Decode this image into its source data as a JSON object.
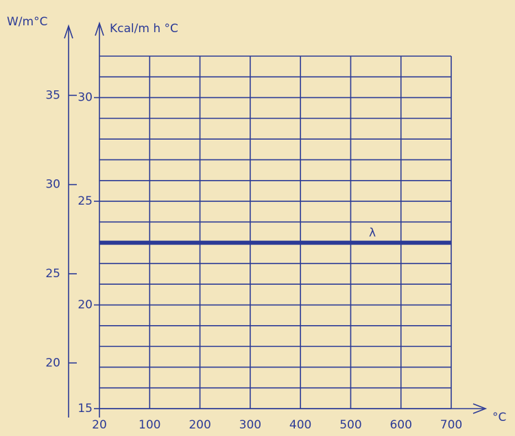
{
  "chart_data": {
    "type": "line",
    "y_label": "Kcal/m h °C",
    "y2_label": "W/m°C",
    "x_label": "°C",
    "categories": [
      "20",
      "100",
      "200",
      "300",
      "400",
      "500",
      "600",
      "700"
    ],
    "series": [
      {
        "name": "λ",
        "color": "#2b3a96",
        "values": [
          23,
          23,
          23,
          23,
          23,
          23,
          23,
          23
        ]
      }
    ],
    "ylim": [
      15,
      32
    ],
    "yticks": [
      15,
      20,
      25,
      30
    ],
    "y_gridlines": [
      15,
      16,
      17,
      18,
      19,
      20,
      21,
      22,
      23,
      24,
      25,
      26,
      27,
      28,
      29,
      30,
      31,
      32
    ],
    "y2lim": [
      17.44,
      37.2
    ],
    "y2ticks": [
      20,
      25,
      30,
      35
    ],
    "grid": true
  }
}
